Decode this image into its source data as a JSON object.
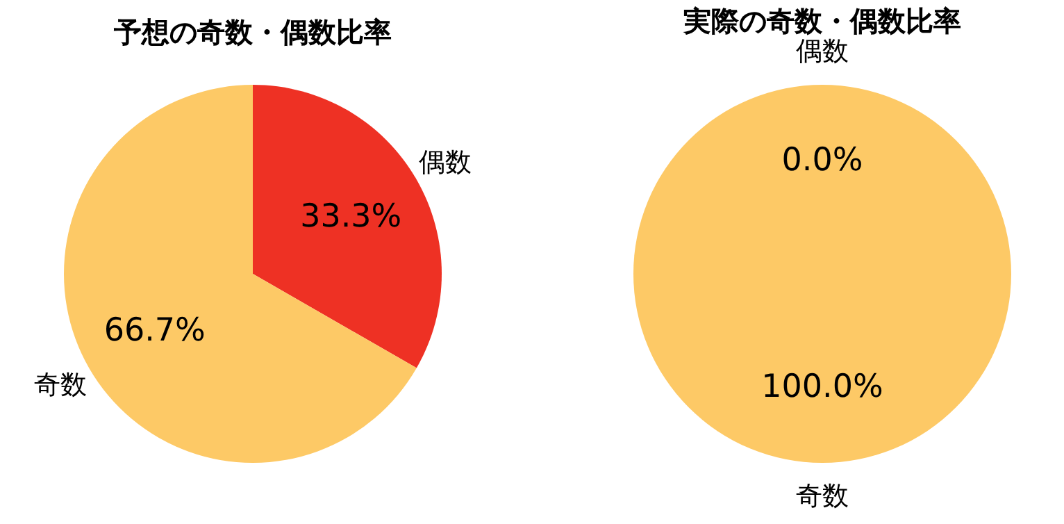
{
  "chart_data": [
    {
      "type": "pie",
      "title": "予想の奇数・偶数比率",
      "categories": [
        "偶数",
        "奇数"
      ],
      "values": [
        33.3,
        66.7
      ],
      "colors": [
        "#ee3124",
        "#fdc966"
      ],
      "value_labels": [
        "33.3%",
        "66.7%"
      ]
    },
    {
      "type": "pie",
      "title": "実際の奇数・偶数比率",
      "categories": [
        "偶数",
        "奇数"
      ],
      "values": [
        0.0,
        100.0
      ],
      "colors": [
        "#ee3124",
        "#fdc966"
      ],
      "value_labels": [
        "0.0%",
        "100.0%"
      ]
    }
  ]
}
